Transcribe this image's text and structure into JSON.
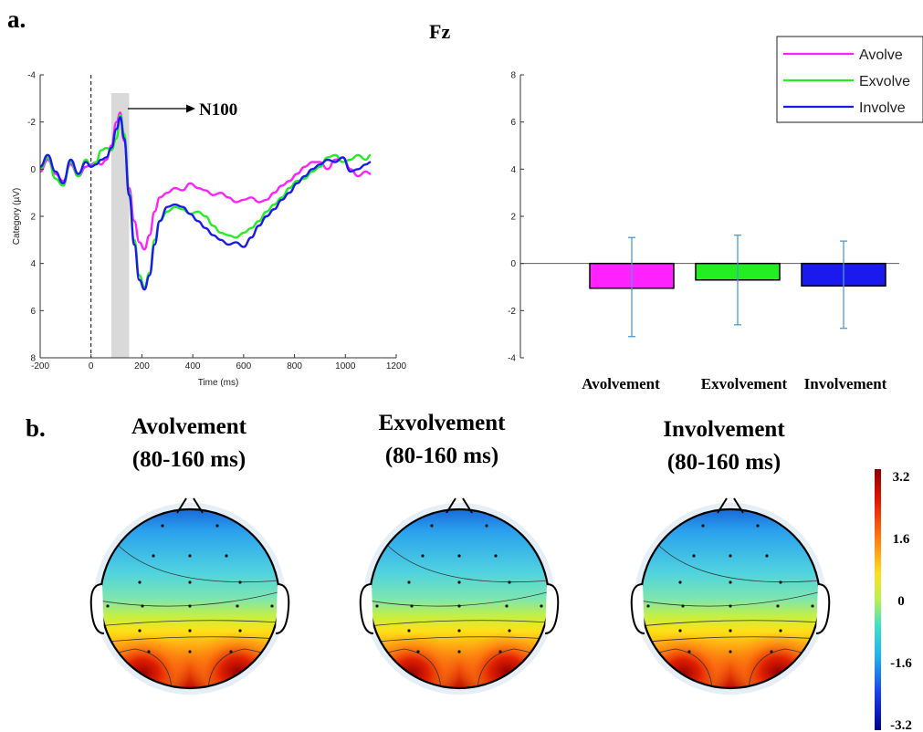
{
  "panel_labels": {
    "a": "a.",
    "b": "b."
  },
  "channel_title": "Fz",
  "annotation": "N100",
  "colors": {
    "avolve": "#ff22ff",
    "exvolve": "#22ee22",
    "involve": "#1a1aee",
    "errorbar": "#4a9ad4",
    "shade": "#d9d9d9"
  },
  "chart_data": [
    {
      "type": "line",
      "xlabel": "Time (ms)",
      "ylabel": "Category (µV)",
      "xlim": [
        -200,
        1200
      ],
      "ylim": [
        8,
        -4
      ],
      "y_reversed": true,
      "x_ticks": [
        "-200",
        "0",
        "200",
        "400",
        "600",
        "800",
        "1000",
        "1200"
      ],
      "y_ticks": [
        "-4",
        "-2",
        "0",
        "2",
        "4",
        "6",
        "8"
      ],
      "shaded_window": [
        80,
        150
      ],
      "stimulus_onset": 0,
      "legend_position": "top-right",
      "x": [
        -200,
        -170,
        -140,
        -110,
        -80,
        -50,
        -20,
        0,
        20,
        40,
        60,
        80,
        100,
        115,
        130,
        150,
        170,
        190,
        210,
        230,
        250,
        270,
        300,
        330,
        360,
        390,
        420,
        450,
        480,
        510,
        540,
        570,
        600,
        630,
        660,
        690,
        720,
        750,
        780,
        810,
        840,
        870,
        900,
        930,
        960,
        990,
        1020,
        1050,
        1080,
        1100
      ],
      "series": [
        {
          "name": "Avolve",
          "values": [
            0.1,
            -0.4,
            0.2,
            0.5,
            -0.2,
            0.3,
            -0.1,
            -0.2,
            -0.3,
            -0.2,
            -0.4,
            -1.0,
            -2.0,
            -2.4,
            -1.2,
            0.8,
            2.2,
            3.1,
            3.4,
            2.8,
            1.8,
            1.2,
            1.0,
            0.8,
            0.9,
            0.6,
            0.8,
            0.9,
            1.1,
            1.0,
            1.2,
            1.4,
            1.3,
            1.2,
            1.4,
            1.3,
            1.0,
            0.7,
            0.5,
            0.2,
            -0.1,
            -0.3,
            -0.3,
            0.0,
            -0.4,
            -0.5,
            0.0,
            0.3,
            0.1,
            0.2
          ]
        },
        {
          "name": "Exvolve",
          "values": [
            0.0,
            -0.5,
            0.4,
            0.7,
            -0.3,
            0.3,
            -0.4,
            -0.1,
            -0.3,
            -0.8,
            -0.9,
            -0.8,
            -1.3,
            -2.3,
            -1.5,
            1.0,
            3.0,
            4.5,
            5.0,
            4.4,
            3.0,
            2.2,
            1.8,
            1.6,
            1.7,
            1.9,
            1.8,
            2.0,
            2.4,
            2.7,
            2.8,
            2.9,
            2.7,
            2.5,
            2.2,
            1.8,
            1.5,
            1.2,
            0.8,
            0.5,
            0.4,
            0.1,
            -0.1,
            -0.5,
            -0.6,
            -0.3,
            -0.4,
            -0.6,
            -0.4,
            -0.6
          ]
        },
        {
          "name": "Involve",
          "values": [
            -0.1,
            -0.6,
            0.1,
            0.6,
            -0.4,
            0.2,
            -0.3,
            -0.1,
            -0.2,
            -0.4,
            -0.5,
            -0.9,
            -1.7,
            -2.2,
            -1.3,
            1.1,
            3.2,
            4.7,
            5.1,
            4.5,
            3.2,
            2.2,
            1.6,
            1.5,
            1.6,
            1.9,
            2.2,
            2.5,
            2.8,
            3.0,
            3.2,
            3.1,
            3.3,
            2.9,
            2.4,
            2.0,
            1.7,
            1.3,
            1.0,
            0.6,
            0.3,
            0.0,
            -0.2,
            -0.4,
            -0.3,
            -0.5,
            0.1,
            0.0,
            -0.2,
            -0.3
          ]
        }
      ]
    },
    {
      "type": "bar",
      "categories": [
        "Avolvement",
        "Exvolvement",
        "Involvement"
      ],
      "values": [
        -1.05,
        -0.7,
        -0.95
      ],
      "error_upper": [
        1.1,
        1.2,
        0.95
      ],
      "error_lower": [
        -3.1,
        -2.6,
        -2.75
      ],
      "ylim": [
        -4,
        8
      ],
      "y_ticks": [
        "-4",
        "-2",
        "0",
        "2",
        "4",
        "6",
        "8"
      ]
    },
    {
      "type": "heatmap",
      "maps": [
        {
          "title_line1": "Avolvement",
          "title_line2": "(80-160 ms)"
        },
        {
          "title_line1": "Exvolvement",
          "title_line2": "(80-160 ms)"
        },
        {
          "title_line1": "Involvement",
          "title_line2": "(80-160 ms)"
        }
      ],
      "colorbar_ticks": [
        "3.2",
        "1.6",
        "0",
        "-1.6",
        "-3.2"
      ],
      "colorbar_range": [
        -3.2,
        3.2
      ]
    }
  ]
}
